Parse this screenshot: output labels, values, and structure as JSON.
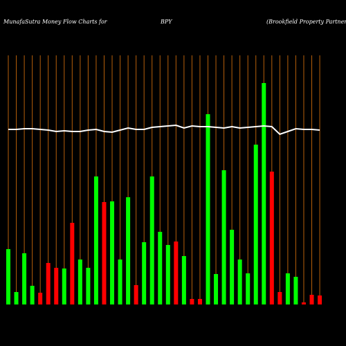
{
  "chart_data": {
    "type": "bar",
    "title": "MunafaSutra  Money Flow  Charts for",
    "symbol": "BPY",
    "subtitle": "(Brookfield Property Partners L.P.",
    "categories": [
      null,
      null,
      null,
      null,
      null,
      null,
      null,
      null,
      null,
      null,
      null,
      null,
      null,
      null,
      null,
      null,
      null,
      null,
      null,
      null,
      null,
      null,
      null,
      null,
      null,
      null,
      null,
      null,
      null,
      null,
      null,
      null,
      null,
      null,
      null,
      null,
      null,
      null,
      null,
      null
    ],
    "values": [
      80,
      18,
      74,
      27,
      17,
      60,
      53,
      52,
      118,
      65,
      53,
      185,
      148,
      149,
      65,
      155,
      28,
      90,
      185,
      105,
      86,
      91,
      70,
      8,
      8,
      275,
      44,
      194,
      108,
      65,
      45,
      231,
      320,
      192,
      18,
      45,
      40,
      3,
      14,
      13
    ],
    "colors": [
      "#00ff00",
      "#00ff00",
      "#00ff00",
      "#00ff00",
      "#ff0000",
      "#ff0000",
      "#ff0000",
      "#00ff00",
      "#ff0000",
      "#00ff00",
      "#00ff00",
      "#00ff00",
      "#ff0000",
      "#00ff00",
      "#00ff00",
      "#00ff00",
      "#ff0000",
      "#00ff00",
      "#00ff00",
      "#00ff00",
      "#00ff00",
      "#ff0000",
      "#00ff00",
      "#ff0000",
      "#ff0000",
      "#00ff00",
      "#00ff00",
      "#00ff00",
      "#00ff00",
      "#00ff00",
      "#00ff00",
      "#00ff00",
      "#00ff00",
      "#ff0000",
      "#ff0000",
      "#00ff00",
      "#00ff00",
      "#ff0000",
      "#ff0000",
      "#ff0000"
    ],
    "line": {
      "color": "#ffffff",
      "values": [
        253,
        253,
        254,
        254,
        253,
        252,
        250,
        251,
        250,
        250,
        252,
        253,
        250,
        249,
        252,
        255,
        253,
        253,
        256,
        257,
        258,
        259,
        255,
        258,
        257,
        257,
        256,
        255,
        257,
        255,
        256,
        257,
        258,
        257,
        246,
        250,
        254,
        253,
        253,
        252
      ]
    },
    "grid_color": "#b8600b",
    "ylim": [
      0,
      360
    ]
  }
}
